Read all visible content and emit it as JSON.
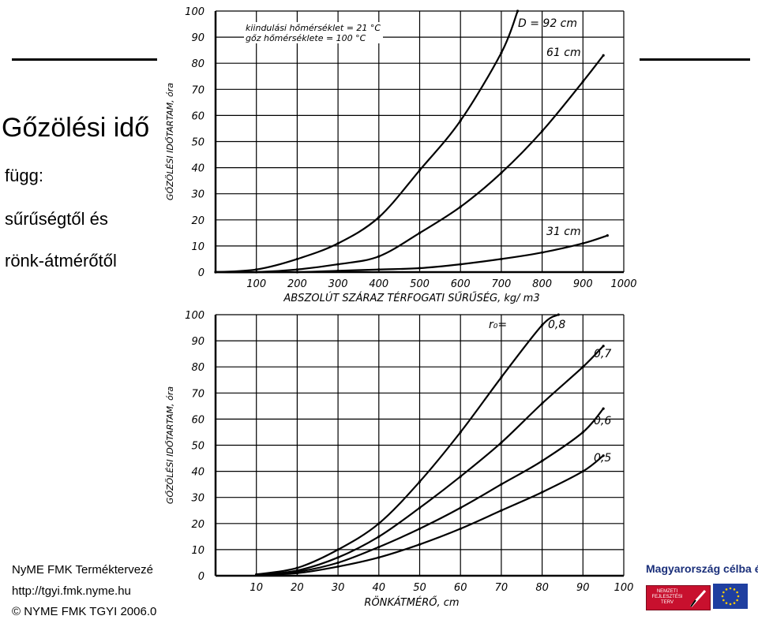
{
  "slide": {
    "title": "Gőzölési idő",
    "bullets": [
      "függ:",
      "sűrűségtől és",
      "rönk-átmérőtől"
    ],
    "footer_left": "NyME FMK Terméktervezé",
    "footer_url": "http://tgyi.fmk.nyme.hu",
    "footer_copyright": "© NYME FMK TGYI 2006.0",
    "tagline": "Magyarország célba ér",
    "logo_text": "NEMZETI FEJLESZTÉSI TERV"
  },
  "colors": {
    "ink": "#000000",
    "tagline": "#1a2f7a",
    "logo_red": "#c8102e",
    "eu_blue": "#1f3fa0",
    "eu_star": "#ffcc00"
  },
  "chart_data": [
    {
      "type": "line",
      "ylabel": "GŐZÖLÉSI IDŐTARTAM, óra",
      "xlabel": "ABSZOLÚT SZÁRAZ TÉRFOGATI SŰRŰSÉG, kg/ m3",
      "xlim": [
        0,
        1000
      ],
      "ylim": [
        0,
        100
      ],
      "xticks": [
        0,
        100,
        200,
        300,
        400,
        500,
        600,
        700,
        800,
        900,
        1000
      ],
      "x_tick_labels": [
        "100",
        "200",
        "300",
        "400",
        "500",
        "600",
        "700",
        "800",
        "900",
        "1000"
      ],
      "yticks": [
        0,
        10,
        20,
        30,
        40,
        50,
        60,
        70,
        80,
        90,
        100
      ],
      "grid": true,
      "annotations": [
        "kiindulási hőmérséklet = 21 °C",
        "gőz hőmérséklete = 100 °C"
      ],
      "series": [
        {
          "name": "D = 92 cm",
          "x": [
            0,
            100,
            200,
            300,
            400,
            500,
            600,
            700,
            740
          ],
          "y": [
            0,
            1,
            5,
            11,
            21,
            39,
            58,
            84,
            100
          ]
        },
        {
          "name": "61 cm",
          "x": [
            0,
            100,
            200,
            300,
            400,
            500,
            600,
            700,
            800,
            900,
            950
          ],
          "y": [
            0,
            0,
            1,
            3,
            6,
            15,
            25,
            38,
            54,
            73,
            83
          ]
        },
        {
          "name": "31 cm",
          "x": [
            0,
            200,
            300,
            400,
            500,
            600,
            700,
            800,
            900,
            960
          ],
          "y": [
            0,
            0,
            0.5,
            1,
            1.5,
            3,
            5,
            7.5,
            11,
            14
          ]
        }
      ]
    },
    {
      "type": "line",
      "ylabel": "GŐZÖLÉSI IDŐTARTAM, óra",
      "xlabel": "RÖNKÁTMÉRŐ, cm",
      "xlim": [
        0,
        100
      ],
      "ylim": [
        0,
        100
      ],
      "xticks": [
        0,
        10,
        20,
        30,
        40,
        50,
        60,
        70,
        80,
        90,
        100
      ],
      "x_tick_labels": [
        "10",
        "20",
        "30",
        "40",
        "50",
        "60",
        "70",
        "80",
        "90",
        "100"
      ],
      "yticks": [
        0,
        10,
        20,
        30,
        40,
        50,
        60,
        70,
        80,
        90,
        100
      ],
      "grid": true,
      "legend_title": "r₀=",
      "series": [
        {
          "name": "0,8",
          "x": [
            10,
            20,
            30,
            40,
            50,
            60,
            70,
            80,
            84
          ],
          "y": [
            0.5,
            3,
            10,
            20,
            36,
            55,
            76,
            96,
            100
          ]
        },
        {
          "name": "0,7",
          "x": [
            10,
            20,
            30,
            40,
            50,
            60,
            70,
            80,
            90,
            95
          ],
          "y": [
            0.4,
            2,
            7,
            15,
            26,
            38,
            51,
            66,
            80,
            88
          ]
        },
        {
          "name": "0,6",
          "x": [
            10,
            20,
            30,
            40,
            50,
            60,
            70,
            80,
            90,
            95
          ],
          "y": [
            0.3,
            1.5,
            5,
            11,
            18,
            26,
            35,
            44,
            55,
            64
          ]
        },
        {
          "name": "0,5",
          "x": [
            10,
            20,
            30,
            40,
            50,
            60,
            70,
            80,
            90,
            95
          ],
          "y": [
            0.2,
            1,
            3.5,
            7,
            12,
            18,
            25,
            32,
            40,
            46
          ]
        }
      ]
    }
  ]
}
